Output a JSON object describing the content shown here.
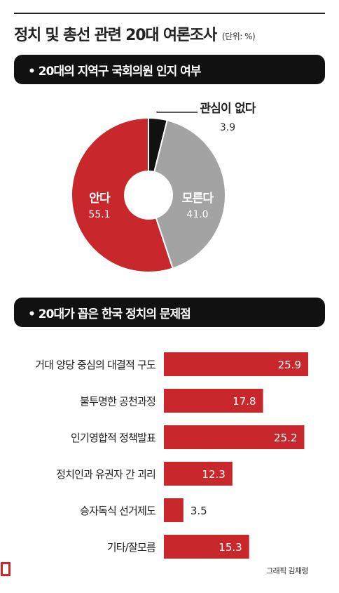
{
  "page_title": "정치 및 총선 관련 20대 여론조사",
  "unit_note": "(단위: %)",
  "section1_title": "• 20대의 지역구 국회의원 인지 여부",
  "section2_title": "• 20대가 꼽은 한국 정치의 문제점",
  "credit": "그래픽 김채령",
  "colors": {
    "red": "#c8282c",
    "gray": "#a3a3a3",
    "black": "#111111",
    "white_label": "#ffffff"
  },
  "chart_data": [
    {
      "type": "pie",
      "title": "• 20대의 지역구 국회의원 인지 여부",
      "slices": [
        {
          "label": "관심이 없다",
          "value": 3.9,
          "display": "3.9",
          "color": "#111111"
        },
        {
          "label": "모른다",
          "value": 41.0,
          "display": "41.0",
          "color": "#a3a3a3"
        },
        {
          "label": "안다",
          "value": 55.1,
          "display": "55.1",
          "color": "#c8282c"
        }
      ],
      "donut": true
    },
    {
      "type": "bar",
      "orientation": "horizontal",
      "title": "• 20대가 꼽은 한국 정치의 문제점",
      "categories": [
        "거대 양당 중심의 대결적 구도",
        "불투명한 공천과정",
        "인기영합적 정책발표",
        "정치인과 유권자 간 괴리",
        "승자독식 선거제도",
        "기타/잘모름"
      ],
      "values": [
        25.9,
        17.8,
        25.2,
        12.3,
        3.5,
        15.3
      ],
      "display": [
        "25.9",
        "17.8",
        "25.2",
        "12.3",
        "3.5",
        "15.3"
      ],
      "color": "#c8282c",
      "xlim": [
        0,
        25.9
      ],
      "grid": false,
      "legend": "none"
    }
  ]
}
